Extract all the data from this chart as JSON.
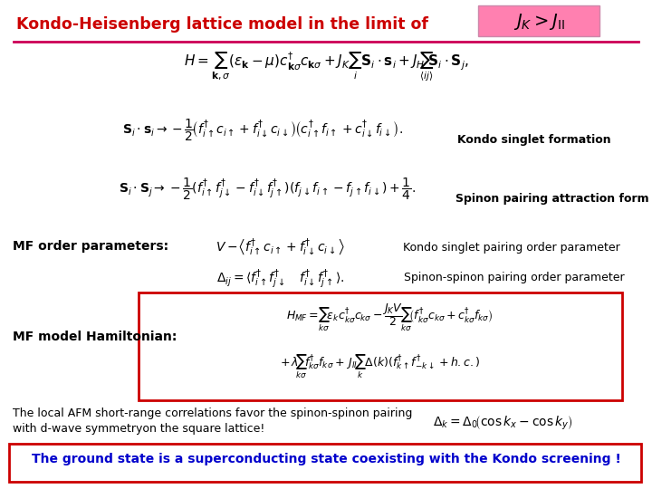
{
  "bg_color": "#ffffff",
  "title_text": "Kondo-Heisenberg lattice model in the limit of",
  "title_color": "#cc0000",
  "title_box_bg": "#ff80b0",
  "line_color": "#cc0055",
  "red_box_color": "#cc0000",
  "blue_text_color": "#0000cc",
  "label_kondo": "Kondo singlet formation",
  "label_spinon": "Spinon pairing attraction form",
  "label_MF": "MF order parameters:",
  "label_kondo_order": "Kondo singlet pairing order parameter",
  "label_spinon_order": "Spinon-spinon pairing order parameter",
  "label_MF_Ham": "MF model Hamiltonian:",
  "bottom_text1": "The local AFM short-range correlations favor the spinon-spinon pairing",
  "bottom_text2": "with d-wave symmetryon the square lattice!",
  "bottom_box_text": "The ground state is a superconducting state coexisting with the Kondo screening !"
}
